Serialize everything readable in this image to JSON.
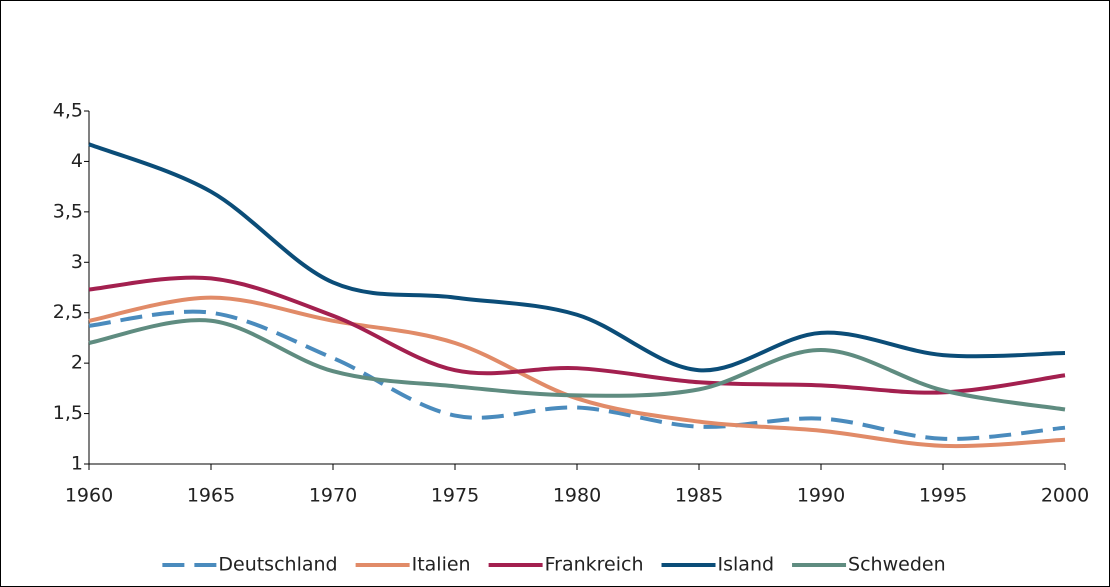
{
  "chart_data": {
    "type": "line",
    "x": [
      1960,
      1965,
      1970,
      1975,
      1980,
      1985,
      1990,
      1995,
      2000
    ],
    "series": [
      {
        "name": "Deutschland",
        "color": "#4a8bbd",
        "style": "dashed",
        "values": [
          2.37,
          2.5,
          2.05,
          1.48,
          1.56,
          1.37,
          1.45,
          1.25,
          1.36
        ]
      },
      {
        "name": "Italien",
        "color": "#e18b68",
        "values": [
          2.42,
          2.65,
          2.42,
          2.2,
          1.65,
          1.42,
          1.33,
          1.18,
          1.24
        ]
      },
      {
        "name": "Frankreich",
        "color": "#a3204f",
        "values": [
          2.73,
          2.84,
          2.47,
          1.93,
          1.95,
          1.81,
          1.78,
          1.71,
          1.88
        ]
      },
      {
        "name": "Island",
        "color": "#0b4d78",
        "values": [
          4.17,
          3.7,
          2.8,
          2.65,
          2.48,
          1.93,
          2.3,
          2.08,
          2.1
        ]
      },
      {
        "name": "Schweden",
        "color": "#5f8c80",
        "values": [
          2.2,
          2.42,
          1.92,
          1.77,
          1.68,
          1.74,
          2.13,
          1.73,
          1.54
        ]
      }
    ],
    "xlim": [
      1960,
      2000
    ],
    "xticks": [
      1960,
      1965,
      1970,
      1975,
      1980,
      1985,
      1990,
      1995,
      2000
    ],
    "ylim": [
      1,
      4.5
    ],
    "yticks": [
      1,
      {
        "value": 1.5,
        "label": "1,5"
      },
      2,
      {
        "value": 2.5,
        "label": "2,5"
      },
      3,
      {
        "value": 3.5,
        "label": "3,5"
      },
      4,
      {
        "value": 4.5,
        "label": "4,5"
      }
    ],
    "smooth": true,
    "legend": "bottom"
  }
}
